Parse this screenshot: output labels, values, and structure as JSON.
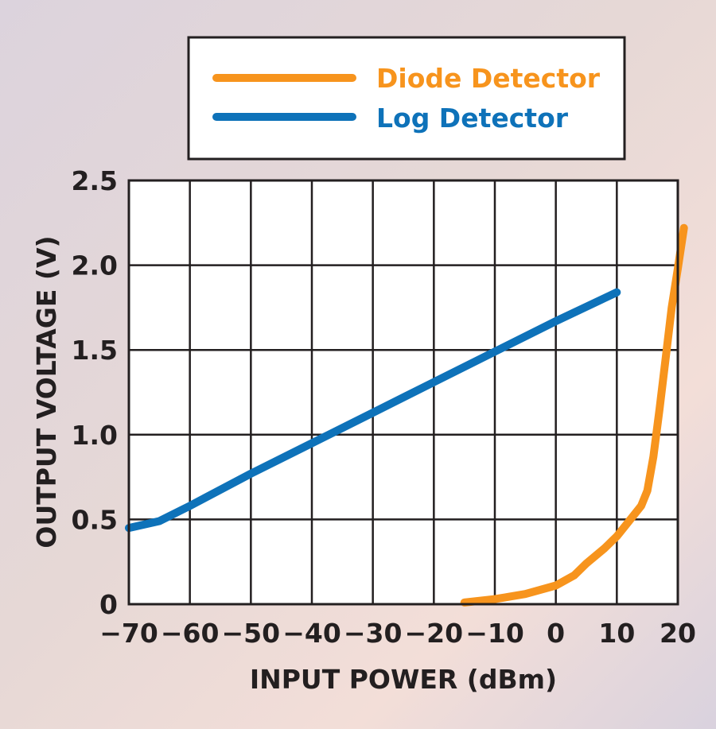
{
  "chart_data": {
    "type": "line",
    "xlabel": "INPUT POWER (dBm)",
    "ylabel": "OUTPUT VOLTAGE (V)",
    "xlim": [
      -70,
      20
    ],
    "ylim": [
      0,
      2.5
    ],
    "xticks": [
      -70,
      -60,
      -50,
      -40,
      -30,
      -20,
      -10,
      0,
      10,
      20
    ],
    "xtick_labels": [
      "−70",
      "−60",
      "−50",
      "−40",
      "−30",
      "−20",
      "−10",
      "0",
      "10",
      "20"
    ],
    "yticks": [
      0,
      0.5,
      1.0,
      1.5,
      2.0,
      2.5
    ],
    "ytick_labels": [
      "0",
      "0.5",
      "1.0",
      "1.5",
      "2.0",
      "2.5"
    ],
    "grid": true,
    "legend_position": "top",
    "series": [
      {
        "name": "Diode Detector",
        "color": "#f7941d",
        "points": [
          [
            -15,
            0.01
          ],
          [
            -10,
            0.03
          ],
          [
            -5,
            0.06
          ],
          [
            0,
            0.11
          ],
          [
            3,
            0.17
          ],
          [
            5,
            0.24
          ],
          [
            8,
            0.33
          ],
          [
            10,
            0.4
          ],
          [
            12,
            0.49
          ],
          [
            14,
            0.58
          ],
          [
            15,
            0.67
          ],
          [
            16,
            0.87
          ],
          [
            17,
            1.15
          ],
          [
            18,
            1.45
          ],
          [
            19,
            1.75
          ],
          [
            20,
            1.98
          ],
          [
            21,
            2.22
          ]
        ]
      },
      {
        "name": "Log Detector",
        "color": "#0e72b9",
        "points": [
          [
            -70,
            0.45
          ],
          [
            -65,
            0.49
          ],
          [
            -60,
            0.58
          ],
          [
            -50,
            0.77
          ],
          [
            -40,
            0.95
          ],
          [
            -30,
            1.13
          ],
          [
            -20,
            1.31
          ],
          [
            -10,
            1.49
          ],
          [
            0,
            1.67
          ],
          [
            10,
            1.84
          ]
        ]
      }
    ]
  }
}
